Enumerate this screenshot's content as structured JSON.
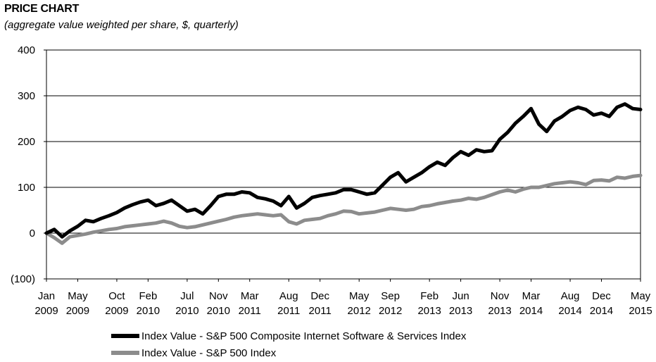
{
  "header": {
    "title": "PRICE CHART",
    "subtitle": "(aggregate value weighted per share, $, quarterly)"
  },
  "legend": {
    "items": [
      {
        "label": "Index Value - S&P 500 Composite Internet Software & Services Index",
        "color": "#000000"
      },
      {
        "label": "Index Value - S&P 500 Index",
        "color": "#8c8c8c"
      }
    ]
  },
  "chart_data": {
    "type": "line",
    "title": "PRICE CHART",
    "subtitle": "(aggregate value weighted per share, $, quarterly)",
    "ylim": [
      -100,
      400
    ],
    "yticks": [
      400,
      300,
      200,
      100,
      0,
      -100
    ],
    "ytick_labels": [
      "400",
      "300",
      "200",
      "100",
      "0",
      "(100)"
    ],
    "xlim": [
      "2009-01",
      "2015-05"
    ],
    "xticks": [
      "2009-01",
      "2009-05",
      "2009-10",
      "2010-02",
      "2010-07",
      "2010-11",
      "2011-03",
      "2011-08",
      "2011-12",
      "2012-05",
      "2012-09",
      "2013-02",
      "2013-06",
      "2013-11",
      "2014-03",
      "2014-08",
      "2014-12",
      "2015-05"
    ],
    "xtick_labels": [
      [
        "Jan",
        "2009"
      ],
      [
        "May",
        "2009"
      ],
      [
        "Oct",
        "2009"
      ],
      [
        "Feb",
        "2010"
      ],
      [
        "Jul",
        "2010"
      ],
      [
        "Nov",
        "2010"
      ],
      [
        "Mar",
        "2011"
      ],
      [
        "Aug",
        "2011"
      ],
      [
        "Dec",
        "2011"
      ],
      [
        "May",
        "2012"
      ],
      [
        "Sep",
        "2012"
      ],
      [
        "Feb",
        "2013"
      ],
      [
        "Jun",
        "2013"
      ],
      [
        "Nov",
        "2013"
      ],
      [
        "Mar",
        "2014"
      ],
      [
        "Aug",
        "2014"
      ],
      [
        "Dec",
        "2014"
      ],
      [
        "May",
        "2015"
      ]
    ],
    "grid": true,
    "legend_position": "bottom",
    "series": [
      {
        "name": "Index Value - S&P 500 Composite Internet Software & Services Index",
        "color": "#000000",
        "points": [
          [
            "2009-01",
            0
          ],
          [
            "2009-02",
            8
          ],
          [
            "2009-03",
            -8
          ],
          [
            "2009-04",
            5
          ],
          [
            "2009-05",
            15
          ],
          [
            "2009-06",
            28
          ],
          [
            "2009-07",
            25
          ],
          [
            "2009-08",
            32
          ],
          [
            "2009-09",
            38
          ],
          [
            "2009-10",
            45
          ],
          [
            "2009-11",
            55
          ],
          [
            "2009-12",
            62
          ],
          [
            "2010-01",
            68
          ],
          [
            "2010-02",
            72
          ],
          [
            "2010-03",
            60
          ],
          [
            "2010-04",
            65
          ],
          [
            "2010-05",
            72
          ],
          [
            "2010-06",
            60
          ],
          [
            "2010-07",
            48
          ],
          [
            "2010-08",
            52
          ],
          [
            "2010-09",
            42
          ],
          [
            "2010-10",
            60
          ],
          [
            "2010-11",
            80
          ],
          [
            "2010-12",
            85
          ],
          [
            "2011-01",
            85
          ],
          [
            "2011-02",
            90
          ],
          [
            "2011-03",
            88
          ],
          [
            "2011-04",
            78
          ],
          [
            "2011-05",
            75
          ],
          [
            "2011-06",
            70
          ],
          [
            "2011-07",
            60
          ],
          [
            "2011-08",
            80
          ],
          [
            "2011-09",
            55
          ],
          [
            "2011-10",
            65
          ],
          [
            "2011-11",
            78
          ],
          [
            "2011-12",
            82
          ],
          [
            "2012-01",
            85
          ],
          [
            "2012-02",
            88
          ],
          [
            "2012-03",
            95
          ],
          [
            "2012-04",
            95
          ],
          [
            "2012-05",
            90
          ],
          [
            "2012-06",
            85
          ],
          [
            "2012-07",
            88
          ],
          [
            "2012-08",
            105
          ],
          [
            "2012-09",
            122
          ],
          [
            "2012-10",
            132
          ],
          [
            "2012-11",
            112
          ],
          [
            "2012-12",
            122
          ],
          [
            "2013-01",
            132
          ],
          [
            "2013-02",
            145
          ],
          [
            "2013-03",
            155
          ],
          [
            "2013-04",
            148
          ],
          [
            "2013-05",
            165
          ],
          [
            "2013-06",
            178
          ],
          [
            "2013-07",
            170
          ],
          [
            "2013-08",
            182
          ],
          [
            "2013-09",
            178
          ],
          [
            "2013-10",
            180
          ],
          [
            "2013-11",
            205
          ],
          [
            "2013-12",
            220
          ],
          [
            "2014-01",
            240
          ],
          [
            "2014-02",
            255
          ],
          [
            "2014-03",
            272
          ],
          [
            "2014-04",
            238
          ],
          [
            "2014-05",
            222
          ],
          [
            "2014-06",
            245
          ],
          [
            "2014-07",
            255
          ],
          [
            "2014-08",
            268
          ],
          [
            "2014-09",
            275
          ],
          [
            "2014-10",
            270
          ],
          [
            "2014-11",
            258
          ],
          [
            "2014-12",
            262
          ],
          [
            "2015-01",
            255
          ],
          [
            "2015-02",
            275
          ],
          [
            "2015-03",
            282
          ],
          [
            "2015-04",
            272
          ],
          [
            "2015-05",
            270
          ]
        ]
      },
      {
        "name": "Index Value - S&P 500 Index",
        "color": "#8c8c8c",
        "points": [
          [
            "2009-01",
            0
          ],
          [
            "2009-02",
            -10
          ],
          [
            "2009-03",
            -22
          ],
          [
            "2009-04",
            -8
          ],
          [
            "2009-05",
            -5
          ],
          [
            "2009-06",
            -2
          ],
          [
            "2009-07",
            2
          ],
          [
            "2009-08",
            5
          ],
          [
            "2009-09",
            8
          ],
          [
            "2009-10",
            10
          ],
          [
            "2009-11",
            14
          ],
          [
            "2009-12",
            16
          ],
          [
            "2010-01",
            18
          ],
          [
            "2010-02",
            20
          ],
          [
            "2010-03",
            22
          ],
          [
            "2010-04",
            26
          ],
          [
            "2010-05",
            22
          ],
          [
            "2010-06",
            15
          ],
          [
            "2010-07",
            12
          ],
          [
            "2010-08",
            14
          ],
          [
            "2010-09",
            18
          ],
          [
            "2010-10",
            22
          ],
          [
            "2010-11",
            26
          ],
          [
            "2010-12",
            30
          ],
          [
            "2011-01",
            35
          ],
          [
            "2011-02",
            38
          ],
          [
            "2011-03",
            40
          ],
          [
            "2011-04",
            42
          ],
          [
            "2011-05",
            40
          ],
          [
            "2011-06",
            38
          ],
          [
            "2011-07",
            40
          ],
          [
            "2011-08",
            25
          ],
          [
            "2011-09",
            20
          ],
          [
            "2011-10",
            28
          ],
          [
            "2011-11",
            30
          ],
          [
            "2011-12",
            32
          ],
          [
            "2012-01",
            38
          ],
          [
            "2012-02",
            42
          ],
          [
            "2012-03",
            48
          ],
          [
            "2012-04",
            47
          ],
          [
            "2012-05",
            42
          ],
          [
            "2012-06",
            44
          ],
          [
            "2012-07",
            46
          ],
          [
            "2012-08",
            50
          ],
          [
            "2012-09",
            54
          ],
          [
            "2012-10",
            52
          ],
          [
            "2012-11",
            50
          ],
          [
            "2012-12",
            52
          ],
          [
            "2013-01",
            58
          ],
          [
            "2013-02",
            60
          ],
          [
            "2013-03",
            64
          ],
          [
            "2013-04",
            67
          ],
          [
            "2013-05",
            70
          ],
          [
            "2013-06",
            72
          ],
          [
            "2013-07",
            76
          ],
          [
            "2013-08",
            74
          ],
          [
            "2013-09",
            78
          ],
          [
            "2013-10",
            84
          ],
          [
            "2013-11",
            90
          ],
          [
            "2013-12",
            94
          ],
          [
            "2014-01",
            90
          ],
          [
            "2014-02",
            96
          ],
          [
            "2014-03",
            100
          ],
          [
            "2014-04",
            100
          ],
          [
            "2014-05",
            104
          ],
          [
            "2014-06",
            108
          ],
          [
            "2014-07",
            110
          ],
          [
            "2014-08",
            112
          ],
          [
            "2014-09",
            110
          ],
          [
            "2014-10",
            106
          ],
          [
            "2014-11",
            115
          ],
          [
            "2014-12",
            116
          ],
          [
            "2015-01",
            114
          ],
          [
            "2015-02",
            122
          ],
          [
            "2015-03",
            120
          ],
          [
            "2015-04",
            124
          ],
          [
            "2015-05",
            126
          ]
        ]
      }
    ]
  }
}
